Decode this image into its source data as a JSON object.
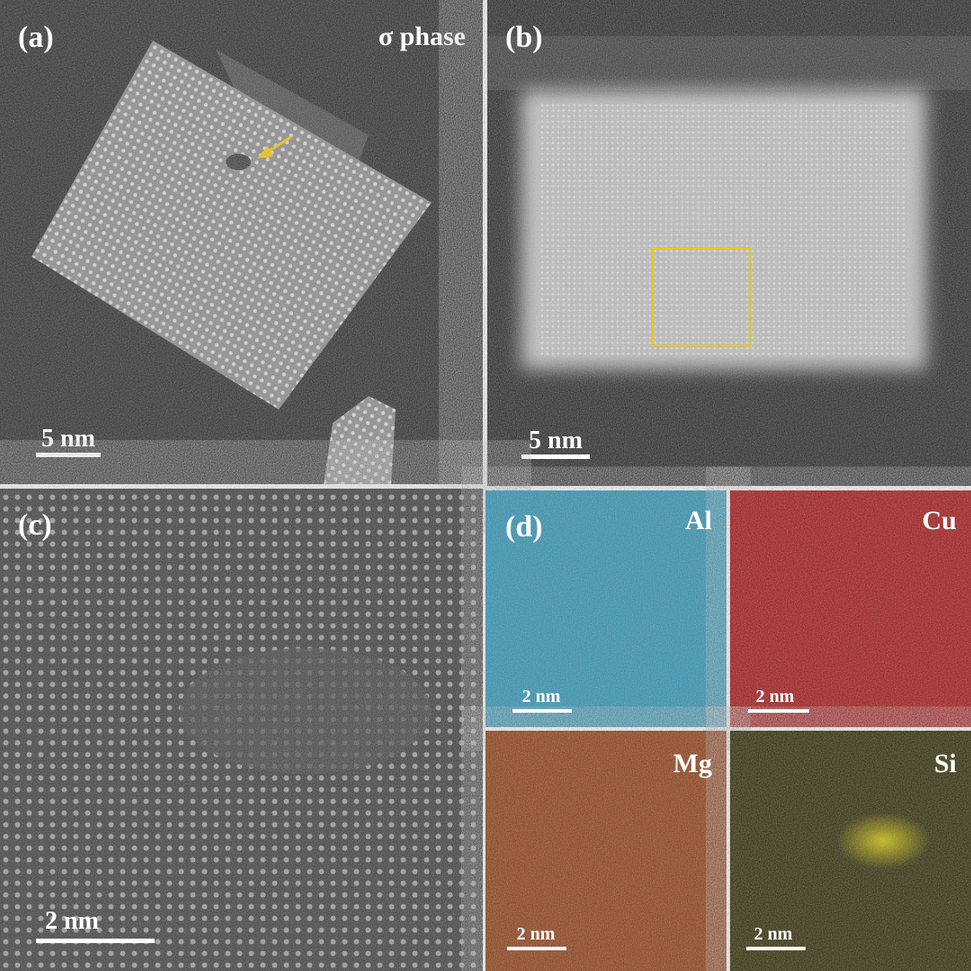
{
  "panels": [
    {
      "label": "(a)",
      "annotation": "σ phase",
      "scale_bar": "5 nm"
    },
    {
      "label": "(b)",
      "scale_bar": "5 nm"
    },
    {
      "label": "(c)",
      "scale_bar": "2 nm"
    },
    {
      "label": "(d)",
      "maps": [
        {
          "element": "Al",
          "scale_bar": "2 nm"
        },
        {
          "element": "Cu",
          "scale_bar": "2 nm"
        },
        {
          "element": "Mg",
          "scale_bar": "2 nm"
        },
        {
          "element": "Si",
          "scale_bar": "2 nm"
        }
      ]
    }
  ]
}
